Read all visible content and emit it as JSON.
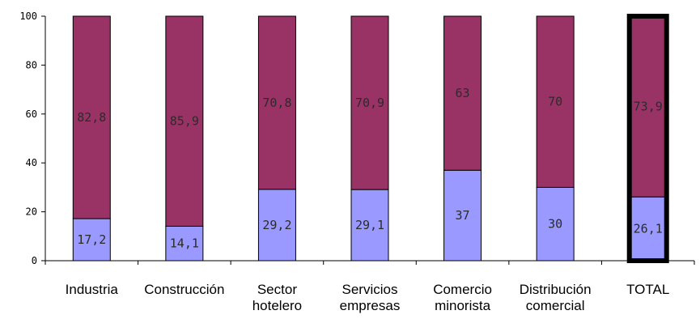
{
  "chart_data": {
    "type": "bar",
    "stacked": true,
    "percent": true,
    "categories": [
      [
        "Industria"
      ],
      [
        "Construcción"
      ],
      [
        "Sector",
        "hotelero"
      ],
      [
        "Servicios",
        "empresas"
      ],
      [
        "Comercio",
        "minorista"
      ],
      [
        "Distribución",
        "comercial"
      ],
      [
        "TOTAL"
      ]
    ],
    "series": [
      {
        "color": "#9999ff",
        "values": [
          17.2,
          14.1,
          29.2,
          29.1,
          37,
          30,
          26.1
        ],
        "labels": [
          "17,2",
          "14,1",
          "29,2",
          "29,1",
          "37",
          "30",
          "26,1"
        ]
      },
      {
        "color": "#993366",
        "values": [
          82.8,
          85.9,
          70.8,
          70.9,
          63,
          70,
          73.9
        ],
        "labels": [
          "82,8",
          "85,9",
          "70,8",
          "70,9",
          "63",
          "70",
          "73,9"
        ]
      }
    ],
    "ylim": [
      0,
      100
    ],
    "yticks": [
      0,
      20,
      40,
      60,
      80,
      100
    ],
    "highlighted_category": "TOTAL",
    "grid": false
  }
}
